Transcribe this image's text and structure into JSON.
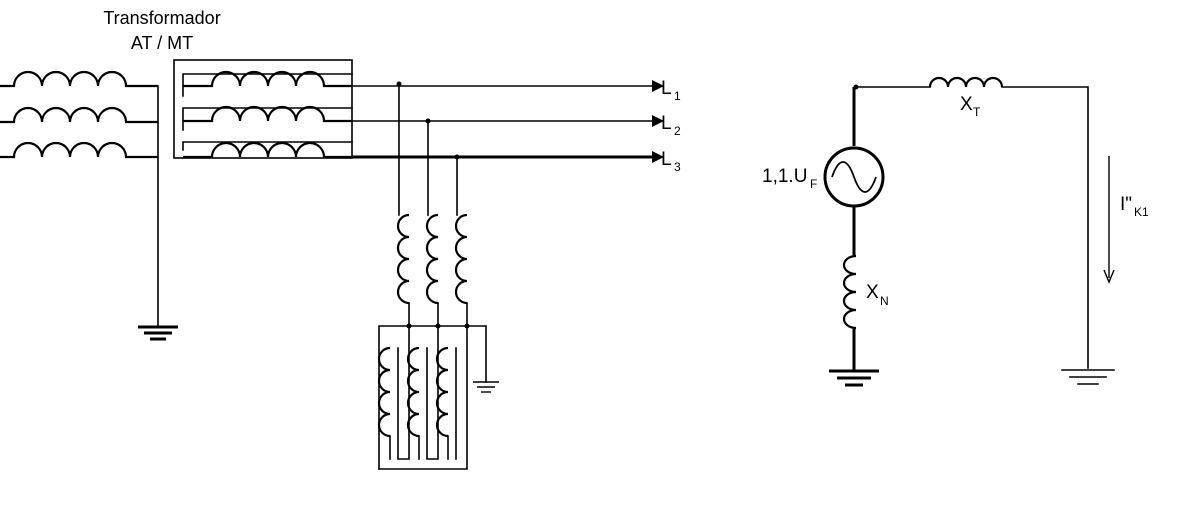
{
  "transformer": {
    "title_line1": "Transformador",
    "title_line2": "AT / MT"
  },
  "lines": {
    "l1": {
      "main": "L",
      "sub": "1"
    },
    "l2": {
      "main": "L",
      "sub": "2"
    },
    "l3": {
      "main": "L",
      "sub": "3"
    }
  },
  "equivalent_circuit": {
    "source_label": {
      "main": "1,1.U",
      "sub": "F"
    },
    "xt_label": {
      "main": "X",
      "sub": "T"
    },
    "xn_label": {
      "main": "X",
      "sub": "N"
    },
    "current_label": {
      "main": "I\"",
      "sub": "K1"
    }
  }
}
